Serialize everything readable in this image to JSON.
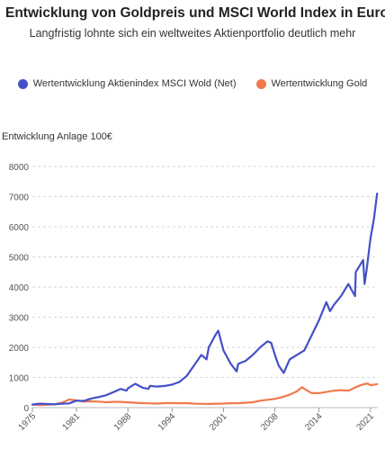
{
  "chart_data": {
    "type": "line",
    "title": "Entwicklung von Goldpreis und MSCI World Index in Euro",
    "subtitle": "Langfristig lohnte sich ein weltweites Aktienportfolio deutlich mehr",
    "ylabel": "Entwicklung Anlage 100€",
    "xlabel": "",
    "ylim": [
      0,
      8000
    ],
    "yticks": [
      0,
      1000,
      2000,
      3000,
      4000,
      5000,
      6000,
      7000,
      8000
    ],
    "ytick_labels": [
      "0",
      "1000",
      "2000",
      "3000",
      "4000",
      "5000",
      "6000",
      "7000",
      "8000"
    ],
    "xlim": [
      1975,
      2022
    ],
    "xticks": [
      1975,
      1981,
      1988,
      1994,
      2001,
      2008,
      2014,
      2021
    ],
    "xtick_labels": [
      "1975",
      "1981",
      "1988",
      "1994",
      "2001",
      "2008",
      "2014",
      "2021"
    ],
    "grid": "horizontal dashed",
    "legend_position": "top-center",
    "series": [
      {
        "name": "Wertentwicklung Aktienindex MSCI Wold (Net)",
        "color": "#4350c8",
        "x": [
          1975,
          1976,
          1977,
          1978,
          1979,
          1980,
          1981,
          1982,
          1983,
          1984,
          1985,
          1986,
          1987,
          1987.8,
          1988,
          1989,
          1990,
          1990.8,
          1991,
          1992,
          1993,
          1994,
          1995,
          1996,
          1997,
          1998,
          1998.7,
          1999,
          2000,
          2000.3,
          2001,
          2002,
          2002.8,
          2003,
          2004,
          2005,
          2006,
          2007,
          2007.5,
          2008,
          2008.5,
          2009.2,
          2010,
          2011,
          2012,
          2013,
          2014,
          2015,
          2015.5,
          2016,
          2017,
          2018,
          2018.9,
          2019,
          2020,
          2020.2,
          2020.5,
          2021,
          2021.5,
          2021.9
        ],
        "y": [
          100,
          130,
          120,
          110,
          130,
          140,
          230,
          220,
          300,
          350,
          410,
          510,
          620,
          560,
          640,
          790,
          660,
          620,
          720,
          700,
          720,
          760,
          850,
          1050,
          1400,
          1750,
          1600,
          2000,
          2450,
          2550,
          1900,
          1450,
          1200,
          1450,
          1550,
          1750,
          2000,
          2200,
          2150,
          1750,
          1400,
          1150,
          1600,
          1750,
          1900,
          2400,
          2900,
          3500,
          3200,
          3400,
          3700,
          4100,
          3700,
          4500,
          4900,
          4100,
          4600,
          5600,
          6300,
          7100
        ]
      },
      {
        "name": "Wertentwicklung Gold",
        "color": "#f07a4d",
        "x": [
          1975,
          1976,
          1977,
          1978,
          1979,
          1980,
          1981,
          1982,
          1983,
          1984,
          1985,
          1986,
          1987,
          1988,
          1989,
          1990,
          1991,
          1992,
          1993,
          1994,
          1995,
          1996,
          1997,
          1998,
          1999,
          2000,
          2001,
          2002,
          2003,
          2004,
          2005,
          2006,
          2007,
          2008,
          2009,
          2010,
          2011,
          2011.7,
          2012,
          2013,
          2014,
          2015,
          2016,
          2017,
          2018,
          2019,
          2020,
          2020.6,
          2021,
          2021.9
        ],
        "y": [
          100,
          85,
          95,
          110,
          160,
          270,
          240,
          200,
          210,
          200,
          180,
          190,
          190,
          175,
          160,
          150,
          140,
          135,
          150,
          150,
          145,
          150,
          130,
          125,
          120,
          130,
          135,
          145,
          150,
          160,
          180,
          230,
          260,
          290,
          350,
          430,
          540,
          680,
          620,
          480,
          480,
          520,
          560,
          580,
          560,
          680,
          770,
          800,
          740,
          780
        ]
      }
    ]
  }
}
